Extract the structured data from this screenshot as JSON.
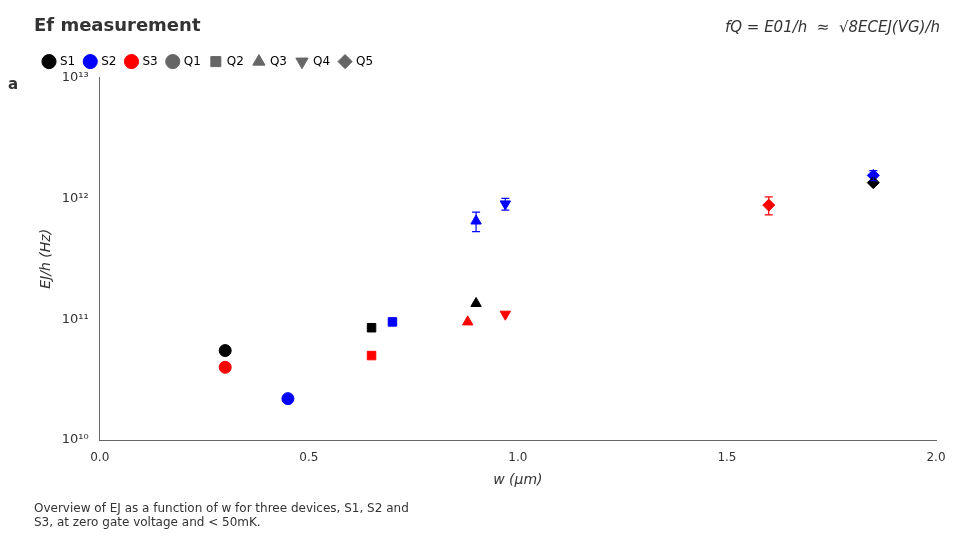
{
  "chart_data": {
    "type": "scatter",
    "title": "Ef measurement",
    "annotations": [
      "fQ = E01/h",
      "≈",
      "√8ECEJ(VG)/h"
    ],
    "panel_label": "a",
    "caption": "Overview of EJ as a function of w for three devices, S1, S2 and\nS3, at zero gate voltage and < 50mK.",
    "x_label": "w (μm)",
    "y_label": "EJ/h (Hz)",
    "log": "y",
    "xlim": [
      0.0,
      2.0
    ],
    "xticks": [
      {
        "value": 0.0,
        "label": "0.0"
      },
      0.5,
      {
        "value": 1.0,
        "label": "1.0"
      },
      1.5,
      {
        "value": 2.0,
        "label": "2.0"
      }
    ],
    "ylim": [
      10000000000.0,
      10000000000000.0
    ],
    "yticks": [
      {
        "value": 10000000000.0,
        "label": "10¹⁰"
      },
      {
        "value": 100000000000.0,
        "label": "10¹¹"
      },
      {
        "value": 1000000000000.0,
        "label": "10¹²"
      },
      {
        "value": 10000000000000.0,
        "label": "10¹³"
      }
    ],
    "grid": false,
    "legend": "upper left",
    "marker_legend": [
      {
        "name": "Q1",
        "marker": "circle"
      },
      {
        "name": "Q2",
        "marker": "square"
      },
      {
        "name": "Q3",
        "marker": "triangle"
      },
      {
        "name": "Q4",
        "marker": "triangle_down"
      },
      {
        "name": "Q5",
        "marker": "diamond"
      }
    ],
    "series": [
      {
        "name": "S1",
        "color": "black",
        "x": [
          0.3,
          0.65,
          0.9,
          1.85
        ],
        "values": [
          55000000000.0,
          85000000000.0,
          135000000000.0,
          1350000000000.0
        ],
        "markers": [
          "circle",
          "square",
          "triangle",
          "diamond"
        ]
      },
      {
        "name": "S2",
        "color": "blue",
        "x": [
          0.45,
          0.7,
          0.9,
          0.97,
          1.85
        ],
        "values": [
          22000000000.0,
          95000000000.0,
          650000000000.0,
          900000000000.0,
          1550000000000.0
        ],
        "markers": [
          "circle",
          "square",
          "triangle",
          "triangle_down",
          "diamond"
        ],
        "yerr": [
          null,
          null,
          120000000000.0,
          100000000000.0,
          150000000000.0
        ]
      },
      {
        "name": "S3",
        "color": "red",
        "x": [
          0.3,
          0.65,
          0.88,
          0.97,
          1.6
        ],
        "values": [
          40000000000.0,
          50000000000.0,
          95000000000.0,
          110000000000.0,
          880000000000.0
        ],
        "markers": [
          "circle",
          "square",
          "triangle",
          "triangle_down",
          "diamond"
        ],
        "yerr": [
          null,
          null,
          null,
          null,
          150000000000.0
        ]
      }
    ]
  }
}
